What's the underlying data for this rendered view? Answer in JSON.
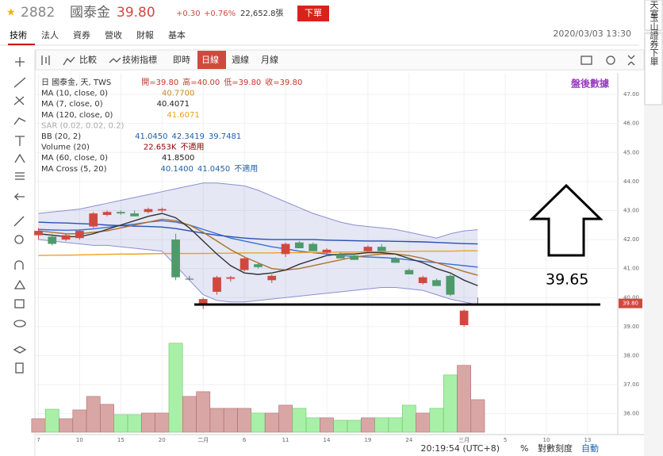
{
  "header": {
    "symbol": "2882",
    "name": "國泰金",
    "price": "39.80",
    "change": "+0.30",
    "change_pct": "+0.76%",
    "volume": "22,652.8張",
    "order_button": "下單",
    "timestamp": "2020/03/03 13:30"
  },
  "tabs": [
    "技術",
    "法人",
    "資券",
    "營收",
    "財報",
    "基本"
  ],
  "toolbar": [
    "比較",
    "技術指標",
    "即時",
    "日線",
    "週線",
    "月線"
  ],
  "sidebar": [
    "聊天室",
    "玉山證券下單"
  ],
  "footer": {
    "clock": "20:19:54 (UTC+8)",
    "percent": "%",
    "log": "對數刻度",
    "auto": "自動"
  },
  "chart_data": {
    "type": "candlestick",
    "legend_lines": [
      {
        "label": "日 國泰金, 天, TWS",
        "readings": [
          "開=39.80",
          "高=40.00",
          "低=39.80",
          "收=39.80"
        ],
        "color": "#c0392b"
      },
      {
        "label": "MA (10, close, 0)",
        "readings": [
          "40.7700"
        ],
        "color": "#c98a1c"
      },
      {
        "label": "MA (7, close, 0)",
        "readings": [
          "40.4071"
        ],
        "color": "#222222"
      },
      {
        "label": "MA (120, close, 0)",
        "readings": [
          "41.6071"
        ],
        "color": "#f0a020"
      },
      {
        "label": "SAR (0.02, 0.02, 0.2)",
        "readings": [],
        "color": "#aaaaaa"
      },
      {
        "label": "BB (20, 2)",
        "readings": [
          "41.0450",
          "42.3419",
          "39.7481"
        ],
        "color": "#1f5fa8"
      },
      {
        "label": "Volume (20)",
        "readings": [
          "22.653K",
          "不適用"
        ],
        "color": "#8b0000"
      },
      {
        "label": "MA (60, close, 0)",
        "readings": [
          "41.8500"
        ],
        "color": "#222222"
      },
      {
        "label": "MA Cross (5, 20)",
        "readings": [
          "40.1400",
          "41.0450",
          "不適用"
        ],
        "color": "#1f5fa8"
      }
    ],
    "corner_note": "盤後數據",
    "annotation": "39.65",
    "last_price_label": {
      "value": 39.8,
      "label": "39.80"
    },
    "ohlc": [
      [
        42.15,
        42.4,
        42.0,
        42.3
      ],
      [
        42.1,
        42.2,
        41.8,
        41.85
      ],
      [
        42.0,
        42.2,
        41.95,
        42.15
      ],
      [
        42.05,
        42.35,
        42.0,
        42.3
      ],
      [
        42.45,
        42.95,
        42.4,
        42.9
      ],
      [
        42.85,
        43.0,
        42.8,
        42.95
      ],
      [
        42.95,
        43.0,
        42.85,
        42.9
      ],
      [
        42.9,
        43.0,
        42.8,
        42.8
      ],
      [
        42.95,
        43.1,
        42.9,
        43.05
      ],
      [
        43.0,
        43.1,
        42.95,
        43.05
      ],
      [
        42.0,
        42.2,
        40.6,
        40.7
      ],
      [
        40.65,
        40.75,
        40.6,
        40.65
      ],
      [
        39.8,
        40.0,
        39.6,
        39.95
      ],
      [
        40.2,
        40.75,
        40.1,
        40.7
      ],
      [
        40.65,
        40.75,
        40.55,
        40.7
      ],
      [
        40.95,
        41.4,
        40.9,
        41.35
      ],
      [
        41.15,
        41.2,
        41.0,
        41.05
      ],
      [
        40.6,
        40.8,
        40.5,
        40.75
      ],
      [
        41.5,
        41.9,
        41.4,
        41.85
      ],
      [
        41.9,
        41.95,
        41.7,
        41.7
      ],
      [
        41.85,
        41.9,
        41.6,
        41.6
      ],
      [
        41.55,
        41.7,
        41.5,
        41.65
      ],
      [
        41.5,
        41.55,
        41.35,
        41.35
      ],
      [
        41.45,
        41.5,
        41.3,
        41.3
      ],
      [
        41.6,
        41.8,
        41.55,
        41.75
      ],
      [
        41.75,
        41.85,
        41.6,
        41.6
      ],
      [
        41.35,
        41.4,
        41.2,
        41.2
      ],
      [
        40.95,
        41.0,
        40.8,
        40.8
      ],
      [
        40.5,
        40.75,
        40.45,
        40.7
      ],
      [
        40.6,
        40.65,
        40.4,
        40.4
      ],
      [
        40.75,
        40.8,
        40.05,
        40.1
      ],
      [
        39.05,
        39.6,
        39.0,
        39.55
      ],
      [
        39.8,
        40.0,
        39.8,
        39.8
      ]
    ],
    "volume": [
      9.4,
      16.0,
      9.4,
      15.5,
      24.9,
      19.4,
      12.2,
      12.2,
      13.3,
      13.3,
      61.9,
      24.9,
      28.2,
      16.6,
      16.6,
      16.6,
      13.3,
      13.3,
      18.8,
      16.6,
      10.0,
      10.0,
      8.3,
      8.3,
      10.0,
      10.0,
      10.0,
      18.8,
      13.3,
      16.6,
      39.8,
      46.5,
      22.653
    ],
    "vlim": [
      0,
      80
    ],
    "up_color": "#d0493f",
    "down_color": "#4f9a6a",
    "vol_up_color": "#d9a6a6",
    "vol_down_color": "#a8f0a8",
    "band_color": "#8a90d0",
    "series": [
      {
        "role": "bb-upper",
        "color": "#8a90d0",
        "values": [
          42.9,
          42.95,
          43.0,
          43.05,
          43.15,
          43.25,
          43.35,
          43.45,
          43.55,
          43.65,
          43.75,
          43.85,
          43.95,
          43.95,
          43.9,
          43.85,
          43.7,
          43.5,
          43.3,
          43.1,
          42.9,
          42.75,
          42.6,
          42.5,
          42.45,
          42.4,
          42.35,
          42.25,
          42.15,
          42.05,
          42.2,
          42.3,
          42.34
        ]
      },
      {
        "role": "bb-lower",
        "color": "#8a90d0",
        "values": [
          42.0,
          41.95,
          41.9,
          41.85,
          41.8,
          41.8,
          41.75,
          41.7,
          41.65,
          41.6,
          41.1,
          40.6,
          40.1,
          39.9,
          39.85,
          39.85,
          39.9,
          39.95,
          40.0,
          40.05,
          40.1,
          40.15,
          40.2,
          40.25,
          40.3,
          40.35,
          40.35,
          40.3,
          40.25,
          40.1,
          39.95,
          39.85,
          39.75
        ]
      },
      {
        "role": "bb-mid",
        "color": "#3a6fd8",
        "values": [
          42.35,
          42.33,
          42.32,
          42.33,
          42.37,
          42.42,
          42.48,
          42.53,
          42.6,
          42.65,
          42.6,
          42.5,
          42.35,
          42.2,
          42.05,
          41.95,
          41.85,
          41.75,
          41.68,
          41.6,
          41.55,
          41.5,
          41.45,
          41.42,
          41.4,
          41.38,
          41.35,
          41.3,
          41.25,
          41.2,
          41.15,
          41.1,
          41.05
        ]
      },
      {
        "role": "ma120",
        "color": "#f0a020",
        "values": [
          41.45,
          41.46,
          41.46,
          41.47,
          41.48,
          41.49,
          41.5,
          41.5,
          41.51,
          41.52,
          41.52,
          41.52,
          41.52,
          41.53,
          41.53,
          41.54,
          41.54,
          41.54,
          41.55,
          41.55,
          41.56,
          41.56,
          41.57,
          41.57,
          41.58,
          41.58,
          41.59,
          41.59,
          41.6,
          41.6,
          41.6,
          41.61,
          41.61
        ]
      },
      {
        "role": "ma60",
        "color": "#2a4fb0",
        "values": [
          42.6,
          42.58,
          42.57,
          42.55,
          42.53,
          42.5,
          42.48,
          42.46,
          42.45,
          42.43,
          42.38,
          42.3,
          42.22,
          42.15,
          42.1,
          42.05,
          42.02,
          42.0,
          42.0,
          42.0,
          42.0,
          41.98,
          41.97,
          41.96,
          41.95,
          41.95,
          41.94,
          41.93,
          41.92,
          41.9,
          41.88,
          41.86,
          41.85
        ]
      },
      {
        "role": "ma10",
        "color": "#b0722a",
        "values": [
          42.3,
          42.25,
          42.2,
          42.2,
          42.25,
          42.3,
          42.4,
          42.5,
          42.6,
          42.7,
          42.65,
          42.5,
          42.25,
          41.95,
          41.65,
          41.4,
          41.2,
          41.0,
          40.95,
          41.0,
          41.1,
          41.2,
          41.3,
          41.4,
          41.45,
          41.5,
          41.5,
          41.45,
          41.35,
          41.2,
          41.05,
          40.9,
          40.77
        ]
      },
      {
        "role": "ma7",
        "color": "#333333",
        "values": [
          42.2,
          42.15,
          42.1,
          42.1,
          42.2,
          42.35,
          42.5,
          42.65,
          42.8,
          42.9,
          42.75,
          42.4,
          41.95,
          41.5,
          41.1,
          40.85,
          40.8,
          40.85,
          40.95,
          41.15,
          41.3,
          41.45,
          41.5,
          41.5,
          41.55,
          41.55,
          41.5,
          41.35,
          41.2,
          41.0,
          40.85,
          40.6,
          40.41
        ]
      }
    ],
    "xlim": [
      -0.2,
      42.2
    ],
    "xticks": [
      {
        "value": 0,
        "label": "7"
      },
      {
        "value": 3,
        "label": "10"
      },
      {
        "value": 6,
        "label": "15"
      },
      {
        "value": 9,
        "label": "20"
      },
      {
        "value": 12,
        "label": "二月"
      },
      {
        "value": 15,
        "label": "6"
      },
      {
        "value": 18,
        "label": "11"
      },
      {
        "value": 21,
        "label": "14"
      },
      {
        "value": 24,
        "label": "19"
      },
      {
        "value": 27,
        "label": "24"
      },
      {
        "value": 31,
        "label": "三月"
      },
      {
        "value": 34,
        "label": "5"
      },
      {
        "value": 37,
        "label": "10"
      },
      {
        "value": 40,
        "label": "13"
      }
    ],
    "ylim": [
      35.28,
      47.74
    ],
    "yticks": [
      {
        "value": 36,
        "label": "36.00"
      },
      {
        "value": 37,
        "label": "37.00"
      },
      {
        "value": 38,
        "label": "38.00"
      },
      {
        "value": 39,
        "label": "39.00"
      },
      {
        "value": 40,
        "label": "40.00"
      },
      {
        "value": 41,
        "label": "41.00"
      },
      {
        "value": 42,
        "label": "42.00"
      },
      {
        "value": 43,
        "label": "43.00"
      },
      {
        "value": 44,
        "label": "44.00"
      },
      {
        "value": 45,
        "label": "45.00"
      },
      {
        "value": 46,
        "label": "46.00"
      },
      {
        "value": 47,
        "label": "47.00"
      }
    ],
    "grid": true
  }
}
